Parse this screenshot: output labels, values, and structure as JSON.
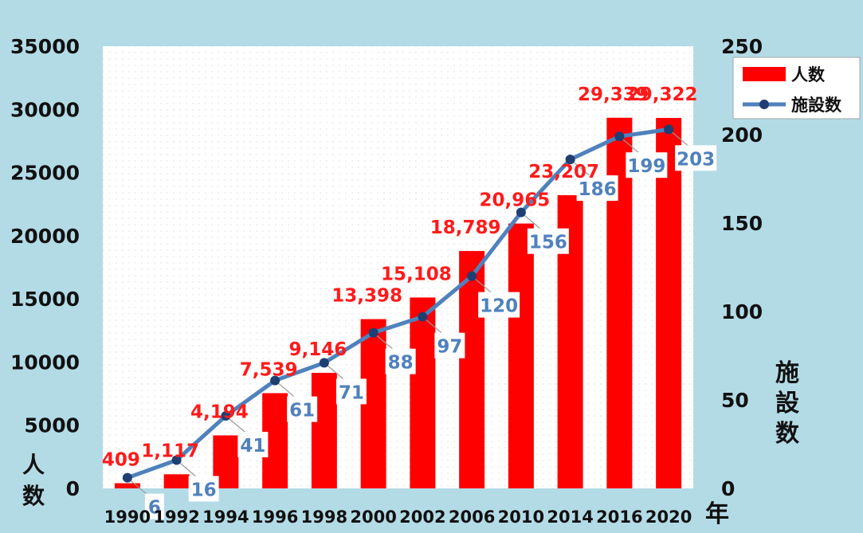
{
  "chart_data": {
    "type": "bar+line",
    "categories": [
      "1990",
      "1992",
      "1994",
      "1996",
      "1998",
      "2000",
      "2002",
      "2006",
      "2010",
      "2014",
      "2016",
      "2020"
    ],
    "series": [
      {
        "name": "人数",
        "type": "bar",
        "axis": "left",
        "color": "#ff0000",
        "values": [
          409,
          1117,
          4194,
          7539,
          9146,
          13398,
          15108,
          18789,
          20965,
          23207,
          29339,
          29322
        ],
        "labels": [
          "409",
          "1,117",
          "4,194",
          "7,539",
          "9,146",
          "13,398",
          "15,108",
          "18,789",
          "20,965",
          "23,207",
          "29,339",
          "29,322"
        ]
      },
      {
        "name": "施設数",
        "type": "line",
        "axis": "right",
        "color": "#4f81bd",
        "values": [
          6,
          16,
          41,
          61,
          71,
          88,
          97,
          120,
          156,
          186,
          199,
          203
        ],
        "labels": [
          "6",
          "16",
          "41",
          "61",
          "71",
          "88",
          "97",
          "120",
          "156",
          "186",
          "199",
          "203"
        ]
      }
    ],
    "left_axis": {
      "label": "人数",
      "min": 0,
      "max": 35000,
      "ticks": [
        "0",
        "5000",
        "10000",
        "15000",
        "20000",
        "25000",
        "30000",
        "35000"
      ]
    },
    "right_axis": {
      "label": "施設数",
      "min": 0,
      "max": 250,
      "ticks": [
        "0",
        "50",
        "100",
        "150",
        "200",
        "250"
      ]
    },
    "x_axis": {
      "label": "年"
    },
    "legend": {
      "position": "top-right",
      "items": [
        "人数",
        "施設数"
      ]
    },
    "colors": {
      "background": "#b3dbe6",
      "plot": "#ffffff",
      "bar": "#ff0000",
      "line": "#4f81bd",
      "bar_label": "#ff1a1a",
      "line_label": "#4f81bd"
    }
  }
}
